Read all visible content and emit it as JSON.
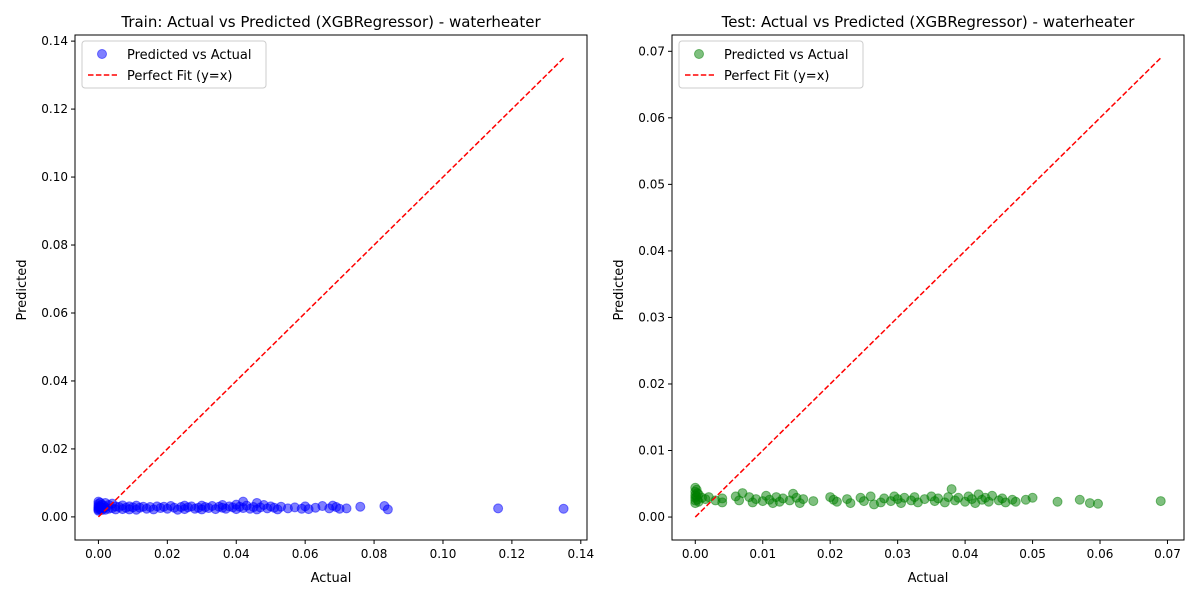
{
  "figure": {
    "background": "#ffffff"
  },
  "chart_data": [
    {
      "type": "scatter",
      "title": "Train: Actual vs Predicted (XGBRegressor) - waterheater",
      "xlabel": "Actual",
      "ylabel": "Predicted",
      "xlim": [
        -0.0068,
        0.1418
      ],
      "ylim": [
        -0.0068,
        0.1418
      ],
      "xticks": [
        "0.00",
        "0.02",
        "0.04",
        "0.06",
        "0.08",
        "0.10",
        "0.12",
        "0.14"
      ],
      "yticks": [
        "0.00",
        "0.02",
        "0.04",
        "0.06",
        "0.08",
        "0.10",
        "0.12",
        "0.14"
      ],
      "grid": false,
      "legend_position": "top-left",
      "series": [
        {
          "name": "Predicted vs Actual",
          "color": "#0000ff",
          "marker": "circle",
          "alpha": 0.5,
          "points": [
            [
              0.0,
              0.0045
            ],
            [
              0.0,
              0.0038
            ],
            [
              0.0,
              0.0032
            ],
            [
              0.0,
              0.0028
            ],
            [
              0.0,
              0.0024
            ],
            [
              0.0,
              0.0021
            ],
            [
              0.0,
              0.0018
            ],
            [
              0.0005,
              0.0042
            ],
            [
              0.0005,
              0.003
            ],
            [
              0.0005,
              0.0022
            ],
            [
              0.001,
              0.0036
            ],
            [
              0.001,
              0.0027
            ],
            [
              0.001,
              0.002
            ],
            [
              0.0015,
              0.0033
            ],
            [
              0.0015,
              0.0025
            ],
            [
              0.002,
              0.0041
            ],
            [
              0.002,
              0.0028
            ],
            [
              0.002,
              0.0021
            ],
            [
              0.003,
              0.0035
            ],
            [
              0.003,
              0.0024
            ],
            [
              0.004,
              0.0039
            ],
            [
              0.004,
              0.0026
            ],
            [
              0.005,
              0.0031
            ],
            [
              0.005,
              0.0022
            ],
            [
              0.006,
              0.0029
            ],
            [
              0.007,
              0.0034
            ],
            [
              0.007,
              0.0023
            ],
            [
              0.008,
              0.0027
            ],
            [
              0.009,
              0.0031
            ],
            [
              0.009,
              0.0022
            ],
            [
              0.01,
              0.0028
            ],
            [
              0.011,
              0.0033
            ],
            [
              0.011,
              0.0021
            ],
            [
              0.012,
              0.0027
            ],
            [
              0.013,
              0.003
            ],
            [
              0.014,
              0.0024
            ],
            [
              0.015,
              0.0029
            ],
            [
              0.016,
              0.0022
            ],
            [
              0.017,
              0.0031
            ],
            [
              0.018,
              0.0026
            ],
            [
              0.019,
              0.003
            ],
            [
              0.02,
              0.0024
            ],
            [
              0.021,
              0.0032
            ],
            [
              0.022,
              0.0027
            ],
            [
              0.023,
              0.0021
            ],
            [
              0.024,
              0.0029
            ],
            [
              0.025,
              0.0033
            ],
            [
              0.025,
              0.0023
            ],
            [
              0.026,
              0.0028
            ],
            [
              0.027,
              0.0031
            ],
            [
              0.028,
              0.0024
            ],
            [
              0.029,
              0.0027
            ],
            [
              0.03,
              0.0033
            ],
            [
              0.03,
              0.0022
            ],
            [
              0.031,
              0.0029
            ],
            [
              0.032,
              0.0026
            ],
            [
              0.033,
              0.0032
            ],
            [
              0.034,
              0.0023
            ],
            [
              0.035,
              0.003
            ],
            [
              0.036,
              0.0027
            ],
            [
              0.036,
              0.0035
            ],
            [
              0.037,
              0.0024
            ],
            [
              0.038,
              0.0031
            ],
            [
              0.039,
              0.0028
            ],
            [
              0.04,
              0.0036
            ],
            [
              0.04,
              0.0023
            ],
            [
              0.041,
              0.003
            ],
            [
              0.042,
              0.0045
            ],
            [
              0.042,
              0.0026
            ],
            [
              0.043,
              0.0033
            ],
            [
              0.044,
              0.0024
            ],
            [
              0.045,
              0.0029
            ],
            [
              0.046,
              0.0041
            ],
            [
              0.046,
              0.0022
            ],
            [
              0.047,
              0.0028
            ],
            [
              0.048,
              0.0035
            ],
            [
              0.049,
              0.0025
            ],
            [
              0.05,
              0.0031
            ],
            [
              0.051,
              0.0027
            ],
            [
              0.052,
              0.0022
            ],
            [
              0.053,
              0.003
            ],
            [
              0.055,
              0.0025
            ],
            [
              0.057,
              0.0028
            ],
            [
              0.059,
              0.0024
            ],
            [
              0.06,
              0.0031
            ],
            [
              0.061,
              0.0023
            ],
            [
              0.063,
              0.0027
            ],
            [
              0.065,
              0.0032
            ],
            [
              0.067,
              0.0025
            ],
            [
              0.068,
              0.0033
            ],
            [
              0.069,
              0.0029
            ],
            [
              0.07,
              0.0024
            ],
            [
              0.072,
              0.0025
            ],
            [
              0.076,
              0.003
            ],
            [
              0.083,
              0.0032
            ],
            [
              0.084,
              0.0022
            ],
            [
              0.116,
              0.0025
            ],
            [
              0.135,
              0.0024
            ]
          ]
        }
      ],
      "reference_line": {
        "name": "Perfect Fit (y=x)",
        "color": "#ff0000",
        "style": "dashed",
        "from": [
          0.0,
          0.0
        ],
        "to": [
          0.135,
          0.135
        ]
      }
    },
    {
      "type": "scatter",
      "title": "Test: Actual vs Predicted (XGBRegressor) - waterheater",
      "xlabel": "Actual",
      "ylabel": "Predicted",
      "xlim": [
        -0.00345,
        0.07245
      ],
      "ylim": [
        -0.00345,
        0.07245
      ],
      "xticks": [
        "0.00",
        "0.01",
        "0.02",
        "0.03",
        "0.04",
        "0.05",
        "0.06",
        "0.07"
      ],
      "yticks": [
        "0.00",
        "0.01",
        "0.02",
        "0.03",
        "0.04",
        "0.05",
        "0.06",
        "0.07"
      ],
      "grid": false,
      "legend_position": "top-left",
      "series": [
        {
          "name": "Predicted vs Actual",
          "color": "#008000",
          "marker": "circle",
          "alpha": 0.5,
          "points": [
            [
              0.0,
              0.0044
            ],
            [
              0.0,
              0.0038
            ],
            [
              0.0,
              0.0033
            ],
            [
              0.0,
              0.0029
            ],
            [
              0.0,
              0.0025
            ],
            [
              0.0,
              0.0021
            ],
            [
              0.0002,
              0.0041
            ],
            [
              0.0002,
              0.0031
            ],
            [
              0.0003,
              0.0036
            ],
            [
              0.0003,
              0.0026
            ],
            [
              0.0005,
              0.0034
            ],
            [
              0.0005,
              0.0023
            ],
            [
              0.001,
              0.0029
            ],
            [
              0.0015,
              0.0027
            ],
            [
              0.002,
              0.003
            ],
            [
              0.003,
              0.0025
            ],
            [
              0.004,
              0.0028
            ],
            [
              0.004,
              0.0022
            ],
            [
              0.006,
              0.0031
            ],
            [
              0.0065,
              0.0025
            ],
            [
              0.007,
              0.0036
            ],
            [
              0.008,
              0.003
            ],
            [
              0.0085,
              0.0022
            ],
            [
              0.009,
              0.0027
            ],
            [
              0.01,
              0.0024
            ],
            [
              0.0105,
              0.0032
            ],
            [
              0.011,
              0.0026
            ],
            [
              0.0115,
              0.0021
            ],
            [
              0.012,
              0.003
            ],
            [
              0.0125,
              0.0023
            ],
            [
              0.013,
              0.0028
            ],
            [
              0.014,
              0.0025
            ],
            [
              0.0145,
              0.0035
            ],
            [
              0.015,
              0.0029
            ],
            [
              0.0155,
              0.0021
            ],
            [
              0.016,
              0.0027
            ],
            [
              0.0175,
              0.0024
            ],
            [
              0.02,
              0.003
            ],
            [
              0.0205,
              0.0026
            ],
            [
              0.021,
              0.0023
            ],
            [
              0.0225,
              0.0027
            ],
            [
              0.023,
              0.0021
            ],
            [
              0.0245,
              0.0029
            ],
            [
              0.025,
              0.0024
            ],
            [
              0.026,
              0.0031
            ],
            [
              0.0265,
              0.0019
            ],
            [
              0.0275,
              0.0022
            ],
            [
              0.028,
              0.0028
            ],
            [
              0.029,
              0.0024
            ],
            [
              0.0295,
              0.0031
            ],
            [
              0.03,
              0.0027
            ],
            [
              0.0305,
              0.0021
            ],
            [
              0.031,
              0.0029
            ],
            [
              0.032,
              0.0025
            ],
            [
              0.0325,
              0.003
            ],
            [
              0.033,
              0.0022
            ],
            [
              0.034,
              0.0027
            ],
            [
              0.035,
              0.0031
            ],
            [
              0.0355,
              0.0024
            ],
            [
              0.036,
              0.0028
            ],
            [
              0.037,
              0.0022
            ],
            [
              0.0375,
              0.003
            ],
            [
              0.038,
              0.0042
            ],
            [
              0.0385,
              0.0025
            ],
            [
              0.039,
              0.0029
            ],
            [
              0.04,
              0.0023
            ],
            [
              0.0405,
              0.0031
            ],
            [
              0.041,
              0.0027
            ],
            [
              0.0415,
              0.0021
            ],
            [
              0.042,
              0.0034
            ],
            [
              0.0425,
              0.0026
            ],
            [
              0.043,
              0.0029
            ],
            [
              0.0435,
              0.0023
            ],
            [
              0.044,
              0.0032
            ],
            [
              0.045,
              0.0025
            ],
            [
              0.0455,
              0.0028
            ],
            [
              0.046,
              0.0022
            ],
            [
              0.047,
              0.0026
            ],
            [
              0.0475,
              0.0023
            ],
            [
              0.049,
              0.0026
            ],
            [
              0.05,
              0.0029
            ],
            [
              0.0537,
              0.0023
            ],
            [
              0.057,
              0.0026
            ],
            [
              0.0585,
              0.0021
            ],
            [
              0.0597,
              0.002
            ],
            [
              0.069,
              0.0024
            ]
          ]
        }
      ],
      "reference_line": {
        "name": "Perfect Fit (y=x)",
        "color": "#ff0000",
        "style": "dashed",
        "from": [
          0.0,
          0.0
        ],
        "to": [
          0.069,
          0.069
        ]
      }
    }
  ]
}
